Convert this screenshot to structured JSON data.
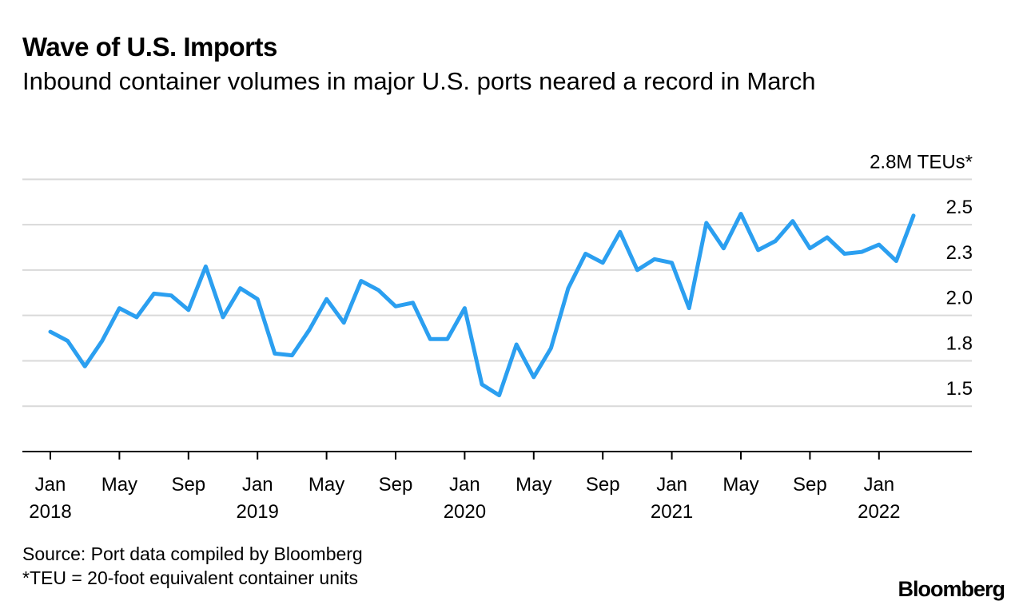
{
  "header": {
    "title": "Wave of U.S. Imports",
    "subtitle": "Inbound container volumes in major U.S. ports neared a record in March"
  },
  "footer": {
    "source": "Source: Port data compiled by Bloomberg",
    "note": "*TEU = 20-foot equivalent container units",
    "logo": "Bloomberg"
  },
  "colors": {
    "line": "#2b9ff0",
    "grid": "#d9d9d9",
    "axis": "#000000"
  },
  "chart_data": {
    "type": "line",
    "title": "Wave of U.S. Imports",
    "subtitle": "Inbound container volumes in major U.S. ports neared a record in March",
    "unit_label": "2.8M TEUs*",
    "xlabel": "",
    "ylabel": "",
    "ylim": [
      1.25,
      2.8
    ],
    "yticks": [
      1.5,
      1.75,
      2.0,
      2.25,
      2.5,
      2.75
    ],
    "ytick_labels": [
      "1.5",
      "1.8",
      "2.0",
      "2.3",
      "2.5",
      "2.8M TEUs*"
    ],
    "xtick_months": [
      {
        "index": 0,
        "label": "Jan",
        "year": "2018"
      },
      {
        "index": 4,
        "label": "May",
        "year": ""
      },
      {
        "index": 8,
        "label": "Sep",
        "year": ""
      },
      {
        "index": 12,
        "label": "Jan",
        "year": "2019"
      },
      {
        "index": 16,
        "label": "May",
        "year": ""
      },
      {
        "index": 20,
        "label": "Sep",
        "year": ""
      },
      {
        "index": 24,
        "label": "Jan",
        "year": "2020"
      },
      {
        "index": 28,
        "label": "May",
        "year": ""
      },
      {
        "index": 32,
        "label": "Sep",
        "year": ""
      },
      {
        "index": 36,
        "label": "Jan",
        "year": "2021"
      },
      {
        "index": 40,
        "label": "May",
        "year": ""
      },
      {
        "index": 44,
        "label": "Sep",
        "year": ""
      },
      {
        "index": 48,
        "label": "Jan",
        "year": "2022"
      }
    ],
    "series": [
      {
        "name": "Inbound container volumes",
        "start": "2018-01",
        "end": "2022-03",
        "values": [
          1.91,
          1.86,
          1.72,
          1.86,
          2.04,
          1.99,
          2.12,
          2.11,
          2.03,
          2.27,
          1.99,
          2.15,
          2.09,
          1.79,
          1.78,
          1.92,
          2.09,
          1.96,
          2.19,
          2.14,
          2.05,
          2.07,
          1.87,
          1.87,
          2.04,
          1.62,
          1.56,
          1.84,
          1.66,
          1.82,
          2.15,
          2.34,
          2.29,
          2.46,
          2.25,
          2.31,
          2.29,
          2.04,
          2.51,
          2.37,
          2.56,
          2.36,
          2.41,
          2.52,
          2.37,
          2.43,
          2.34,
          2.35,
          2.39,
          2.3,
          2.55
        ]
      }
    ]
  }
}
